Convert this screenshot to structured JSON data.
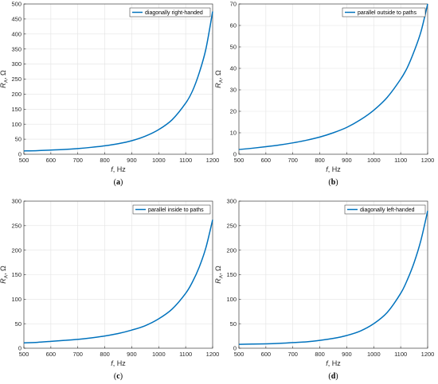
{
  "line_color": "#0072bd",
  "chart_data": [
    {
      "type": "line",
      "panel_label": "(a)",
      "legend": "diagonally right-handed",
      "xlabel_var": "f",
      "xlabel_unit": ", Hz",
      "ylabel_var": "R",
      "ylabel_sub": "A",
      "ylabel_unit": ", Ω",
      "xlim": [
        500,
        1200
      ],
      "ylim": [
        0,
        500
      ],
      "xticks": [
        500,
        600,
        700,
        800,
        900,
        1000,
        1100,
        1200
      ],
      "yticks": [
        0,
        50,
        100,
        150,
        200,
        250,
        300,
        350,
        400,
        450,
        500
      ],
      "legend_position": "top-right",
      "grid": true,
      "series": [
        {
          "x": [
            500,
            550,
            600,
            650,
            700,
            750,
            800,
            850,
            900,
            950,
            1000,
            1050,
            1100,
            1125,
            1150,
            1175,
            1200
          ],
          "values": [
            11,
            12,
            14,
            16,
            19,
            23,
            28,
            35,
            45,
            60,
            82,
            115,
            170,
            210,
            270,
            350,
            475
          ]
        }
      ]
    },
    {
      "type": "line",
      "panel_label": "(b)",
      "legend": "parallel outside to paths",
      "xlabel_var": "f",
      "xlabel_unit": ", Hz",
      "ylabel_var": "R",
      "ylabel_sub": "A",
      "ylabel_unit": ", Ω",
      "xlim": [
        500,
        1200
      ],
      "ylim": [
        0,
        70
      ],
      "xticks": [
        500,
        600,
        700,
        800,
        900,
        1000,
        1100,
        1200
      ],
      "yticks": [
        0,
        10,
        20,
        30,
        40,
        50,
        60,
        70
      ],
      "legend_position": "top-right",
      "grid": true,
      "series": [
        {
          "x": [
            500,
            550,
            600,
            650,
            700,
            750,
            800,
            850,
            900,
            950,
            1000,
            1050,
            1100,
            1125,
            1150,
            1175,
            1200
          ],
          "values": [
            2.2,
            2.8,
            3.5,
            4.3,
            5.3,
            6.5,
            8,
            10,
            12.5,
            16,
            20.5,
            26.5,
            35,
            40.5,
            48,
            57,
            70
          ]
        }
      ]
    },
    {
      "type": "line",
      "panel_label": "(c)",
      "legend": "parallel inside to paths",
      "xlabel_var": "f",
      "xlabel_unit": ", Hz",
      "ylabel_var": "R",
      "ylabel_sub": "A",
      "ylabel_unit": ", Ω",
      "xlim": [
        500,
        1200
      ],
      "ylim": [
        0,
        300
      ],
      "xticks": [
        500,
        600,
        700,
        800,
        900,
        1000,
        1100,
        1200
      ],
      "yticks": [
        0,
        50,
        100,
        150,
        200,
        250,
        300
      ],
      "legend_position": "top-right",
      "grid": true,
      "series": [
        {
          "x": [
            500,
            550,
            600,
            650,
            700,
            750,
            800,
            850,
            900,
            950,
            1000,
            1050,
            1100,
            1125,
            1150,
            1175,
            1200
          ],
          "values": [
            11,
            12,
            14,
            16,
            18,
            21,
            25,
            30,
            37,
            46,
            60,
            80,
            112,
            135,
            165,
            205,
            262
          ]
        }
      ]
    },
    {
      "type": "line",
      "panel_label": "(d)",
      "legend": "diagonally left-handed",
      "xlabel_var": "f",
      "xlabel_unit": ", Hz",
      "ylabel_var": "R",
      "ylabel_sub": "A",
      "ylabel_unit": ", Ω",
      "xlim": [
        500,
        1200
      ],
      "ylim": [
        0,
        300
      ],
      "xticks": [
        500,
        600,
        700,
        800,
        900,
        1000,
        1100,
        1200
      ],
      "yticks": [
        0,
        50,
        100,
        150,
        200,
        250,
        300
      ],
      "legend_position": "top-right",
      "grid": true,
      "series": [
        {
          "x": [
            500,
            550,
            600,
            650,
            700,
            750,
            800,
            850,
            900,
            950,
            1000,
            1050,
            1100,
            1125,
            1150,
            1175,
            1200
          ],
          "values": [
            8,
            8.5,
            9,
            10,
            11.5,
            13,
            16,
            20,
            26,
            35,
            50,
            73,
            112,
            140,
            175,
            220,
            280
          ]
        }
      ]
    }
  ]
}
